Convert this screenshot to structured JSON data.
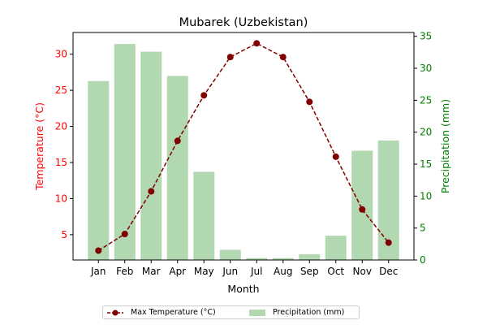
{
  "chart_data": {
    "type": "bar+line",
    "title": "Mubarek (Uzbekistan)",
    "xlabel": "Month",
    "ylabel_left": "Temperature (°C)",
    "ylabel_right": "Precipitation (mm)",
    "categories": [
      "Jan",
      "Feb",
      "Mar",
      "Apr",
      "May",
      "Jun",
      "Jul",
      "Aug",
      "Sep",
      "Oct",
      "Nov",
      "Dec"
    ],
    "ylim_left": [
      1.5,
      33.0
    ],
    "ylim_right": [
      0,
      35.6
    ],
    "yticks_left": [
      5,
      10,
      15,
      20,
      25,
      30
    ],
    "yticks_right": [
      0,
      5,
      10,
      15,
      20,
      25,
      30,
      35
    ],
    "series": [
      {
        "name": "Max Temperature (°C)",
        "type": "line",
        "axis": "left",
        "values": [
          2.8,
          5.1,
          11.0,
          18.0,
          24.3,
          29.6,
          31.5,
          29.6,
          23.4,
          15.8,
          8.5,
          3.9
        ]
      },
      {
        "name": "Precipitation (mm)",
        "type": "bar",
        "axis": "right",
        "values": [
          28.0,
          33.8,
          32.6,
          28.8,
          13.8,
          1.6,
          0.3,
          0.3,
          0.9,
          3.8,
          17.1,
          18.7
        ]
      }
    ],
    "legend": "bottom-center",
    "grid": false,
    "colors": {
      "line": "#800000",
      "bar": "#b2d8b2",
      "left_axis": "#ff0000",
      "right_axis": "#008000"
    }
  }
}
